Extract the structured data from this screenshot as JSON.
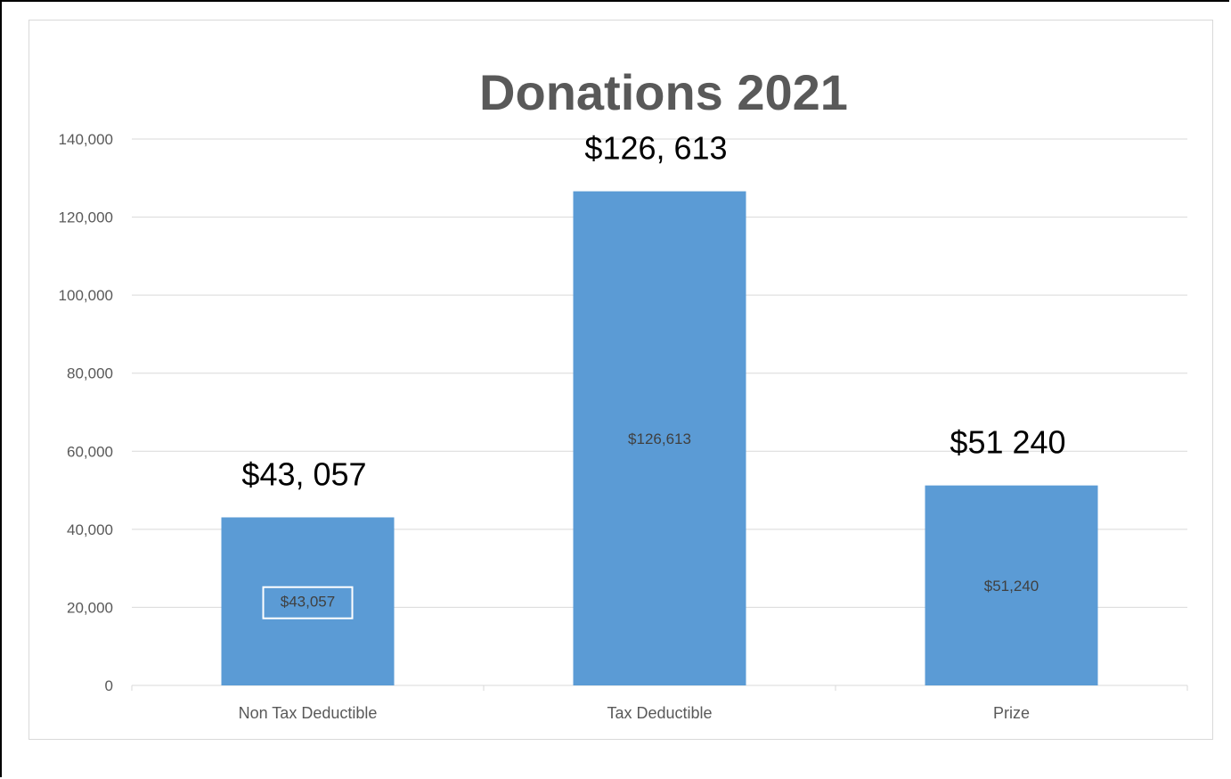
{
  "chart_data": {
    "type": "bar",
    "title": "Donations 2021",
    "categories": [
      "Non Tax Deductible",
      "Tax Deductible",
      "Prize"
    ],
    "values": [
      43057,
      126613,
      51240
    ],
    "inner_labels": [
      "$43,057",
      "$126,613",
      "$51,240"
    ],
    "outer_labels": [
      "$43, 057",
      "$126, 613",
      "$51 240"
    ],
    "yticks": [
      "0",
      "20,000",
      "40,000",
      "60,000",
      "80,000",
      "100,000",
      "120,000",
      "140,000"
    ],
    "ylim": [
      0,
      140000
    ],
    "grid": true,
    "bar_color": "#5b9bd5",
    "legend": "none"
  }
}
